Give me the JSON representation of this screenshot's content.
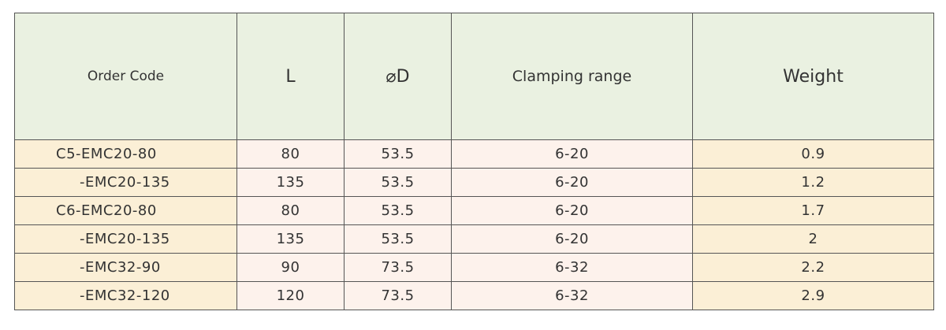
{
  "table": {
    "headers": {
      "order_code": "Order Code",
      "l": "L",
      "d": "⌀D",
      "clamping": "Clamping range",
      "weight": "Weight"
    },
    "rows": [
      {
        "code": "C5-EMC20-80",
        "l": "80",
        "d": "53.5",
        "clamping": "6-20",
        "weight": "0.9"
      },
      {
        "code": "-EMC20-135",
        "l": "135",
        "d": "53.5",
        "clamping": "6-20",
        "weight": "1.2"
      },
      {
        "code": "C6-EMC20-80",
        "l": "80",
        "d": "53.5",
        "clamping": "6-20",
        "weight": "1.7"
      },
      {
        "code": "-EMC20-135",
        "l": "135",
        "d": "53.5",
        "clamping": "6-20",
        "weight": "2"
      },
      {
        "code": "-EMC32-90",
        "l": "90",
        "d": "73.5",
        "clamping": "6-32",
        "weight": "2.2"
      },
      {
        "code": "-EMC32-120",
        "l": "120",
        "d": "73.5",
        "clamping": "6-32",
        "weight": "2.9"
      }
    ]
  },
  "colors": {
    "header_bg": "#eaf1e1",
    "code_col_bg": "#fbefd6",
    "value_bg": "#fdf2ec",
    "border": "#555555"
  }
}
